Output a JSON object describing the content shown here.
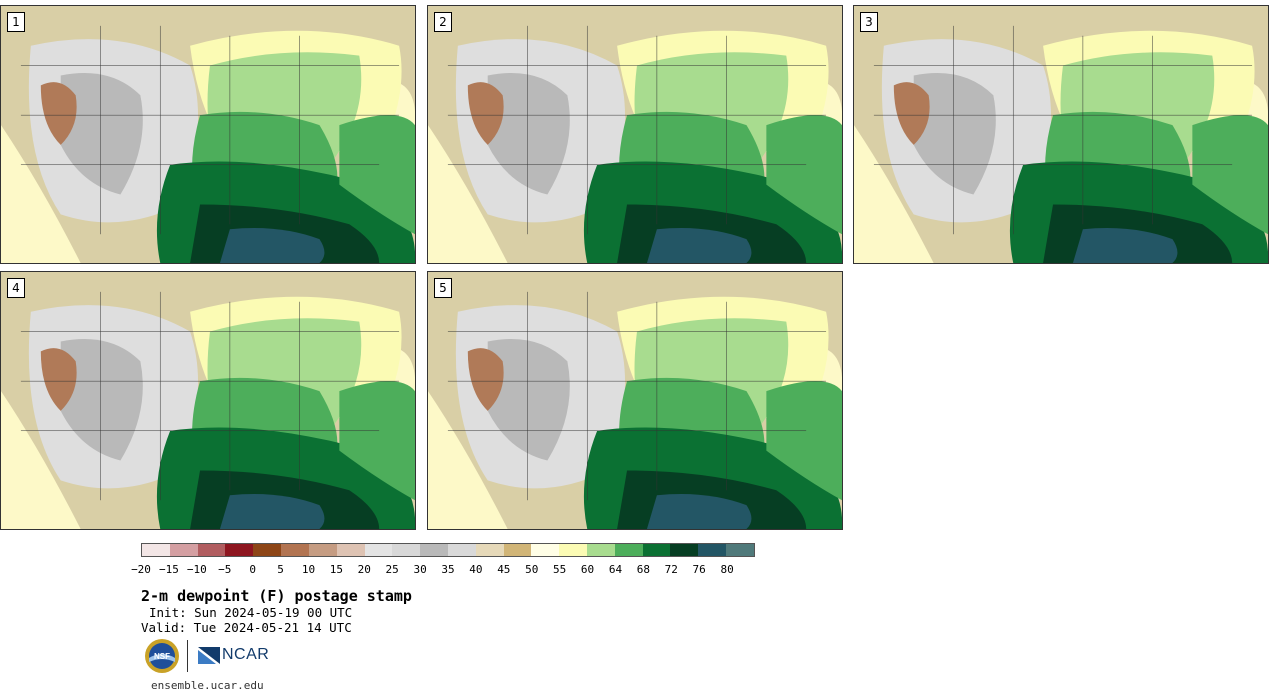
{
  "panels": [
    {
      "label": "1"
    },
    {
      "label": "2"
    },
    {
      "label": "3"
    },
    {
      "label": "4"
    },
    {
      "label": "5"
    }
  ],
  "colorbar": {
    "colors": [
      "#f3e6e6",
      "#d49fa2",
      "#b15d60",
      "#8e1620",
      "#8e4617",
      "#b27451",
      "#c59c82",
      "#dec3b3",
      "#e4e4e4",
      "#d8d8d8",
      "#b9b9b9",
      "#d9d9d9",
      "#e6d9b9",
      "#d1b577",
      "#fffee6",
      "#fbfbb4",
      "#a8dc8f",
      "#4dae5b",
      "#0b7133",
      "#063e23",
      "#235665",
      "#507a7b"
    ],
    "ticks": [
      "−20",
      "−15",
      "−10",
      "−5",
      "0",
      "5",
      "10",
      "15",
      "20",
      "25",
      "30",
      "35",
      "40",
      "45",
      "50",
      "55",
      "60",
      "64",
      "68",
      "72",
      "76",
      "80"
    ]
  },
  "title": "2-m dewpoint (F) postage stamp",
  "init": "Init: Sun 2024-05-19 00 UTC",
  "valid": "Valid: Tue 2024-05-21 14 UTC",
  "logos": {
    "nsf": "NSF",
    "ncar": "NCAR"
  },
  "site": "ensemble.ucar.edu"
}
